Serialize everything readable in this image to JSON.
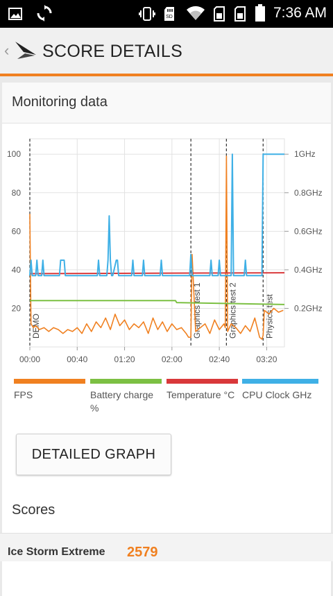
{
  "status_bar": {
    "time": "7:36 AM"
  },
  "app_bar": {
    "back_glyph": "‹",
    "title": "SCORE DETAILS",
    "logo_icon": "3dmark-logo-icon"
  },
  "monitoring": {
    "heading": "Monitoring data",
    "markers": [
      "DEMO",
      "Graphics test 1",
      "Graphics test 2",
      "Physics test"
    ],
    "legend": [
      {
        "label": "FPS",
        "color": "#f08020"
      },
      {
        "label": "Battery charge %",
        "color": "#7cc043"
      },
      {
        "label": "Temperature °C",
        "color": "#d9383a"
      },
      {
        "label": "CPU Clock GHz",
        "color": "#3fb0e6"
      }
    ],
    "button_label": "DETAILED GRAPH"
  },
  "chart_data": {
    "type": "line",
    "x_ticks": [
      "00:00",
      "00:40",
      "01:20",
      "02:00",
      "02:40",
      "03:20"
    ],
    "x_range_seconds": [
      0,
      215
    ],
    "y_left_ticks": [
      "20",
      "40",
      "60",
      "80",
      "100"
    ],
    "y_left_range": [
      0,
      108
    ],
    "y_right_ticks": [
      "0.2GHz",
      "0.4GHz",
      "0.6GHz",
      "0.8GHz",
      "1GHz"
    ],
    "y_right_range_ghz": [
      0,
      1.08
    ],
    "section_markers_seconds": [
      0,
      136,
      166,
      197
    ],
    "series": [
      {
        "name": "FPS",
        "color": "#f08020",
        "x": [
          0,
          1,
          3,
          5,
          8,
          12,
          16,
          20,
          24,
          28,
          32,
          36,
          40,
          44,
          48,
          52,
          56,
          60,
          64,
          68,
          72,
          76,
          80,
          84,
          88,
          92,
          96,
          100,
          104,
          108,
          112,
          116,
          120,
          124,
          128,
          132,
          134,
          136,
          137,
          140,
          144,
          148,
          152,
          156,
          160,
          164,
          165,
          166,
          167,
          170,
          174,
          178,
          182,
          186,
          190,
          194,
          196,
          197,
          198,
          202,
          206,
          210,
          214
        ],
        "y": [
          69,
          12,
          10,
          11,
          9,
          10,
          8,
          10,
          9,
          7,
          9,
          8,
          10,
          7,
          12,
          8,
          13,
          10,
          15,
          9,
          17,
          11,
          14,
          9,
          12,
          10,
          13,
          7,
          15,
          9,
          13,
          8,
          12,
          9,
          10,
          7,
          5,
          5,
          48,
          8,
          10,
          12,
          7,
          14,
          9,
          12,
          10,
          99,
          8,
          12,
          10,
          7,
          11,
          8,
          15,
          5,
          4,
          6,
          19,
          17,
          20,
          18,
          19
        ]
      },
      {
        "name": "Battery charge",
        "color": "#7cc043",
        "x": [
          0,
          123,
          124,
          215
        ],
        "y": [
          24,
          24,
          23,
          22
        ]
      },
      {
        "name": "Temperature",
        "color": "#d9383a",
        "x": [
          0,
          215
        ],
        "y": [
          38,
          38.5
        ]
      },
      {
        "name": "CPU Clock",
        "color": "#3fb0e6",
        "x": [
          0,
          1,
          2,
          5,
          6,
          7,
          10,
          11,
          12,
          25,
          26,
          27,
          28,
          29,
          30,
          57,
          58,
          59,
          65,
          66,
          67,
          68,
          69,
          70,
          73,
          74,
          75,
          86,
          87,
          88,
          95,
          96,
          97,
          110,
          111,
          112,
          135,
          136,
          137,
          152,
          153,
          154,
          159,
          160,
          161,
          170,
          171,
          172,
          181,
          182,
          183,
          196,
          197,
          198,
          215
        ],
        "y": [
          0.37,
          0.45,
          0.37,
          0.37,
          0.45,
          0.37,
          0.37,
          0.45,
          0.37,
          0.37,
          0.45,
          0.45,
          0.45,
          0.45,
          0.37,
          0.37,
          0.45,
          0.37,
          0.37,
          0.45,
          0.68,
          0.45,
          0.37,
          0.37,
          0.45,
          0.45,
          0.37,
          0.37,
          0.45,
          0.37,
          0.37,
          0.45,
          0.37,
          0.37,
          0.45,
          0.37,
          0.37,
          0.48,
          0.37,
          0.37,
          0.45,
          0.37,
          0.37,
          0.45,
          0.37,
          0.37,
          1.0,
          0.37,
          0.37,
          0.45,
          0.37,
          0.37,
          1.0,
          1.0,
          1.0
        ]
      }
    ]
  },
  "scores": {
    "heading": "Scores",
    "rows": [
      {
        "name": "Ice Storm Extreme",
        "value": "2579"
      }
    ]
  }
}
